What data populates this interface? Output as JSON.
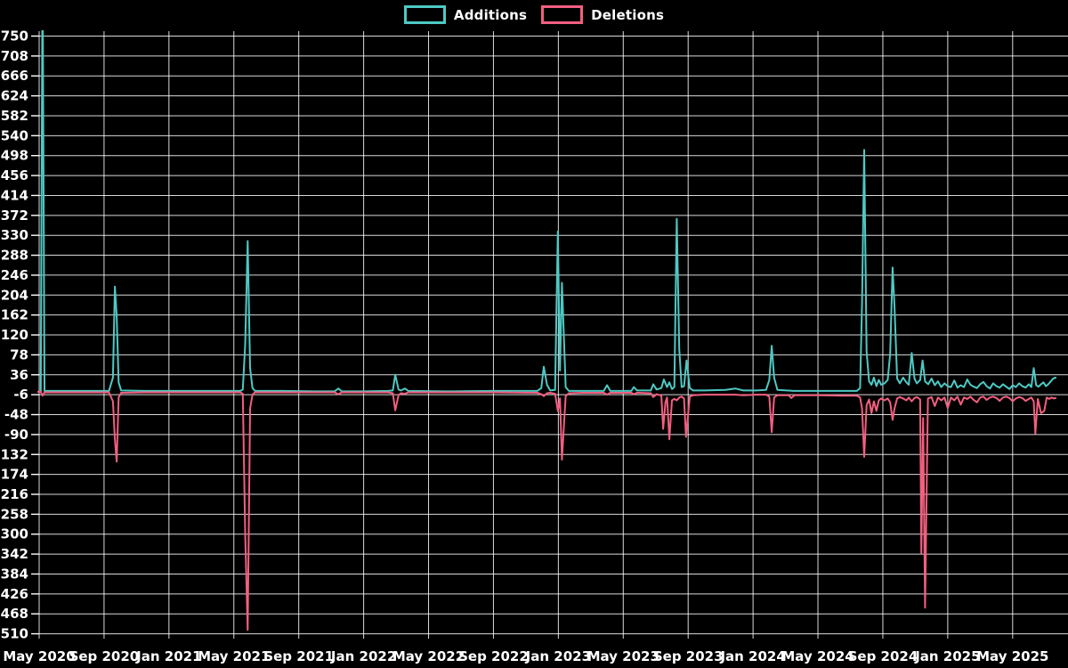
{
  "legend": {
    "items": [
      {
        "label": "Additions",
        "color": "#4ec9c4"
      },
      {
        "label": "Deletions",
        "color": "#f25f7f"
      }
    ]
  },
  "chart_data": {
    "type": "line",
    "title": "",
    "grid": true,
    "legend_position": "top-center",
    "background_color": "#000000",
    "gridline_color": "rgba(255,255,255,0.85)",
    "text_color": "#ffffff",
    "x_axis": {
      "unit": "months since May 2020 (fractional; data points are weekly)",
      "tick_step_months": 4,
      "domain_months": [
        -0.1,
        62.8
      ],
      "tick_labels": [
        "May 2020",
        "Sep 2020",
        "Jan 2021",
        "May 2021",
        "Sep 2021",
        "Jan 2022",
        "May 2022",
        "Sep 2022",
        "Jan 2023",
        "May 2023",
        "Sep 2023",
        "Jan 2024",
        "May 2024",
        "Sep 2024",
        "Jan 2025",
        "May 2025"
      ]
    },
    "y_axis": {
      "min": -510,
      "max": 750,
      "tick_step": 42,
      "ticks": [
        750,
        708,
        666,
        624,
        582,
        540,
        498,
        456,
        414,
        372,
        330,
        288,
        246,
        204,
        162,
        120,
        78,
        36,
        -6,
        -48,
        -90,
        -132,
        -174,
        -216,
        -258,
        -300,
        -342,
        -384,
        -426,
        -468,
        -510
      ]
    },
    "series": [
      {
        "name": "Additions",
        "color": "#4ec9c4",
        "points": [
          [
            -0.1,
            0
          ],
          [
            0.1,
            0
          ],
          [
            0.21,
            900
          ],
          [
            0.33,
            2
          ],
          [
            1.5,
            2
          ],
          [
            3,
            2
          ],
          [
            4.3,
            2
          ],
          [
            4.55,
            30
          ],
          [
            4.67,
            222
          ],
          [
            4.78,
            160
          ],
          [
            4.9,
            20
          ],
          [
            5.05,
            3
          ],
          [
            6.5,
            2
          ],
          [
            9,
            2
          ],
          [
            11.5,
            2
          ],
          [
            12.4,
            2
          ],
          [
            12.55,
            5
          ],
          [
            12.7,
            100
          ],
          [
            12.85,
            318
          ],
          [
            13.0,
            50
          ],
          [
            13.15,
            8
          ],
          [
            13.3,
            2
          ],
          [
            15,
            2
          ],
          [
            17,
            1
          ],
          [
            18.2,
            1
          ],
          [
            18.45,
            7
          ],
          [
            18.65,
            1
          ],
          [
            20,
            1
          ],
          [
            21.5,
            2
          ],
          [
            21.8,
            3
          ],
          [
            21.95,
            36
          ],
          [
            22.15,
            5
          ],
          [
            22.3,
            3
          ],
          [
            22.55,
            7
          ],
          [
            22.75,
            2
          ],
          [
            25,
            1
          ],
          [
            28,
            2
          ],
          [
            30.7,
            2
          ],
          [
            30.95,
            8
          ],
          [
            31.1,
            53
          ],
          [
            31.3,
            15
          ],
          [
            31.5,
            3
          ],
          [
            31.8,
            4
          ],
          [
            31.97,
            338
          ],
          [
            32.1,
            45
          ],
          [
            32.22,
            230
          ],
          [
            32.45,
            10
          ],
          [
            32.65,
            2
          ],
          [
            33.5,
            2
          ],
          [
            34.8,
            2
          ],
          [
            35.0,
            14
          ],
          [
            35.2,
            2
          ],
          [
            36.5,
            2
          ],
          [
            36.65,
            10
          ],
          [
            36.85,
            3
          ],
          [
            37.7,
            3
          ],
          [
            37.85,
            16
          ],
          [
            38.05,
            5
          ],
          [
            38.35,
            8
          ],
          [
            38.5,
            26
          ],
          [
            38.7,
            10
          ],
          [
            38.84,
            20
          ],
          [
            39.0,
            6
          ],
          [
            39.15,
            10
          ],
          [
            39.3,
            365
          ],
          [
            39.45,
            90
          ],
          [
            39.6,
            10
          ],
          [
            39.75,
            12
          ],
          [
            39.9,
            66
          ],
          [
            40.1,
            8
          ],
          [
            40.3,
            3
          ],
          [
            41,
            3
          ],
          [
            42.3,
            4
          ],
          [
            42.9,
            7
          ],
          [
            43.4,
            3
          ],
          [
            44.2,
            3
          ],
          [
            44.8,
            4
          ],
          [
            45.0,
            25
          ],
          [
            45.15,
            97
          ],
          [
            45.3,
            30
          ],
          [
            45.5,
            4
          ],
          [
            46.5,
            2
          ],
          [
            48,
            2
          ],
          [
            49.5,
            2
          ],
          [
            50.4,
            2
          ],
          [
            50.6,
            8
          ],
          [
            50.72,
            188
          ],
          [
            50.85,
            510
          ],
          [
            51.0,
            85
          ],
          [
            51.15,
            22
          ],
          [
            51.3,
            15
          ],
          [
            51.45,
            30
          ],
          [
            51.6,
            12
          ],
          [
            51.75,
            25
          ],
          [
            51.9,
            15
          ],
          [
            52.1,
            18
          ],
          [
            52.3,
            25
          ],
          [
            52.45,
            80
          ],
          [
            52.6,
            262
          ],
          [
            52.72,
            178
          ],
          [
            52.88,
            28
          ],
          [
            53.05,
            18
          ],
          [
            53.25,
            30
          ],
          [
            53.45,
            20
          ],
          [
            53.6,
            15
          ],
          [
            53.78,
            82
          ],
          [
            53.95,
            28
          ],
          [
            54.1,
            18
          ],
          [
            54.3,
            25
          ],
          [
            54.45,
            66
          ],
          [
            54.6,
            22
          ],
          [
            54.8,
            16
          ],
          [
            55.0,
            28
          ],
          [
            55.2,
            14
          ],
          [
            55.4,
            22
          ],
          [
            55.6,
            10
          ],
          [
            55.8,
            18
          ],
          [
            56.0,
            12
          ],
          [
            56.2,
            10
          ],
          [
            56.4,
            24
          ],
          [
            56.6,
            9
          ],
          [
            56.8,
            14
          ],
          [
            57.0,
            10
          ],
          [
            57.2,
            26
          ],
          [
            57.4,
            15
          ],
          [
            57.6,
            11
          ],
          [
            57.8,
            8
          ],
          [
            58.0,
            16
          ],
          [
            58.2,
            21
          ],
          [
            58.4,
            12
          ],
          [
            58.6,
            7
          ],
          [
            58.8,
            18
          ],
          [
            59.0,
            12
          ],
          [
            59.2,
            9
          ],
          [
            59.4,
            16
          ],
          [
            59.6,
            11
          ],
          [
            59.8,
            6
          ],
          [
            60.0,
            14
          ],
          [
            60.2,
            10
          ],
          [
            60.4,
            18
          ],
          [
            60.6,
            12
          ],
          [
            60.8,
            9
          ],
          [
            61.0,
            16
          ],
          [
            61.15,
            10
          ],
          [
            61.3,
            50
          ],
          [
            61.45,
            14
          ],
          [
            61.6,
            11
          ],
          [
            61.75,
            16
          ],
          [
            61.9,
            20
          ],
          [
            62.05,
            12
          ],
          [
            62.2,
            16
          ],
          [
            62.35,
            22
          ],
          [
            62.5,
            28
          ],
          [
            62.65,
            30
          ]
        ]
      },
      {
        "name": "Deletions",
        "color": "#f25f7f",
        "points": [
          [
            -0.1,
            0
          ],
          [
            0.1,
            0
          ],
          [
            0.21,
            -8
          ],
          [
            0.33,
            -1
          ],
          [
            1.5,
            -1
          ],
          [
            3,
            -1
          ],
          [
            4.3,
            -1
          ],
          [
            4.55,
            -20
          ],
          [
            4.67,
            -100
          ],
          [
            4.78,
            -147
          ],
          [
            4.9,
            -12
          ],
          [
            5.05,
            -2
          ],
          [
            6.5,
            -1
          ],
          [
            9,
            -1
          ],
          [
            11.5,
            -1
          ],
          [
            12.4,
            -1
          ],
          [
            12.55,
            -4
          ],
          [
            12.7,
            -300
          ],
          [
            12.85,
            -502
          ],
          [
            13.0,
            -35
          ],
          [
            13.15,
            -6
          ],
          [
            13.3,
            -1
          ],
          [
            15,
            -1
          ],
          [
            17,
            -1
          ],
          [
            18.2,
            -1
          ],
          [
            18.45,
            -5
          ],
          [
            18.65,
            -1
          ],
          [
            20,
            -1
          ],
          [
            21.5,
            -1
          ],
          [
            21.8,
            -3
          ],
          [
            21.95,
            -39
          ],
          [
            22.15,
            -7
          ],
          [
            22.3,
            -3
          ],
          [
            22.55,
            -4
          ],
          [
            22.75,
            -1
          ],
          [
            25,
            -1
          ],
          [
            28,
            -1
          ],
          [
            30.7,
            -2
          ],
          [
            30.95,
            -5
          ],
          [
            31.1,
            -9
          ],
          [
            31.3,
            -3
          ],
          [
            31.5,
            -2
          ],
          [
            31.8,
            -4
          ],
          [
            31.97,
            -40
          ],
          [
            32.1,
            -14
          ],
          [
            32.22,
            -143
          ],
          [
            32.45,
            -9
          ],
          [
            32.65,
            -3
          ],
          [
            33.5,
            -2
          ],
          [
            34.8,
            -2
          ],
          [
            35.0,
            -6
          ],
          [
            35.2,
            -2
          ],
          [
            36.5,
            -2
          ],
          [
            36.65,
            -5
          ],
          [
            36.85,
            -2
          ],
          [
            37.7,
            -3
          ],
          [
            37.85,
            -11
          ],
          [
            38.05,
            -5
          ],
          [
            38.35,
            -8
          ],
          [
            38.46,
            -78
          ],
          [
            38.6,
            -22
          ],
          [
            38.7,
            -12
          ],
          [
            38.84,
            -100
          ],
          [
            39.0,
            -18
          ],
          [
            39.15,
            -15
          ],
          [
            39.3,
            -18
          ],
          [
            39.45,
            -12
          ],
          [
            39.6,
            -10
          ],
          [
            39.75,
            -14
          ],
          [
            39.87,
            -95
          ],
          [
            40.1,
            -10
          ],
          [
            40.3,
            -7
          ],
          [
            41,
            -6
          ],
          [
            42.3,
            -6
          ],
          [
            42.9,
            -6
          ],
          [
            43.4,
            -7
          ],
          [
            44.2,
            -6
          ],
          [
            44.8,
            -6
          ],
          [
            45.0,
            -10
          ],
          [
            45.15,
            -85
          ],
          [
            45.3,
            -12
          ],
          [
            45.5,
            -7
          ],
          [
            46.2,
            -7
          ],
          [
            46.35,
            -13
          ],
          [
            46.55,
            -7
          ],
          [
            48,
            -7
          ],
          [
            49.5,
            -8
          ],
          [
            50.4,
            -8
          ],
          [
            50.6,
            -12
          ],
          [
            50.72,
            -35
          ],
          [
            50.85,
            -137
          ],
          [
            51.0,
            -28
          ],
          [
            51.15,
            -16
          ],
          [
            51.3,
            -45
          ],
          [
            51.45,
            -20
          ],
          [
            51.6,
            -40
          ],
          [
            51.75,
            -18
          ],
          [
            51.9,
            -14
          ],
          [
            52.1,
            -18
          ],
          [
            52.3,
            -14
          ],
          [
            52.45,
            -22
          ],
          [
            52.6,
            -59
          ],
          [
            52.72,
            -35
          ],
          [
            52.88,
            -14
          ],
          [
            53.05,
            -11
          ],
          [
            53.25,
            -14
          ],
          [
            53.45,
            -18
          ],
          [
            53.6,
            -12
          ],
          [
            53.78,
            -20
          ],
          [
            53.95,
            -13
          ],
          [
            54.1,
            -11
          ],
          [
            54.3,
            -16
          ],
          [
            54.37,
            -340
          ],
          [
            54.48,
            -55
          ],
          [
            54.6,
            -455
          ],
          [
            54.78,
            -14
          ],
          [
            55.0,
            -11
          ],
          [
            55.2,
            -30
          ],
          [
            55.4,
            -12
          ],
          [
            55.6,
            -18
          ],
          [
            55.8,
            -12
          ],
          [
            56.0,
            -34
          ],
          [
            56.2,
            -12
          ],
          [
            56.4,
            -18
          ],
          [
            56.6,
            -10
          ],
          [
            56.8,
            -27
          ],
          [
            57.0,
            -12
          ],
          [
            57.2,
            -15
          ],
          [
            57.4,
            -10
          ],
          [
            57.6,
            -17
          ],
          [
            57.8,
            -22
          ],
          [
            58.0,
            -12
          ],
          [
            58.2,
            -10
          ],
          [
            58.4,
            -17
          ],
          [
            58.6,
            -12
          ],
          [
            58.8,
            -10
          ],
          [
            59.0,
            -13
          ],
          [
            59.2,
            -19
          ],
          [
            59.4,
            -12
          ],
          [
            59.6,
            -10
          ],
          [
            59.8,
            -13
          ],
          [
            60.0,
            -20
          ],
          [
            60.2,
            -14
          ],
          [
            60.4,
            -11
          ],
          [
            60.6,
            -13
          ],
          [
            60.8,
            -19
          ],
          [
            61.0,
            -15
          ],
          [
            61.15,
            -12
          ],
          [
            61.3,
            -20
          ],
          [
            61.4,
            -88
          ],
          [
            61.55,
            -15
          ],
          [
            61.75,
            -45
          ],
          [
            61.95,
            -40
          ],
          [
            62.1,
            -12
          ],
          [
            62.25,
            -15
          ],
          [
            62.4,
            -12
          ],
          [
            62.55,
            -14
          ],
          [
            62.65,
            -13
          ]
        ]
      }
    ]
  }
}
